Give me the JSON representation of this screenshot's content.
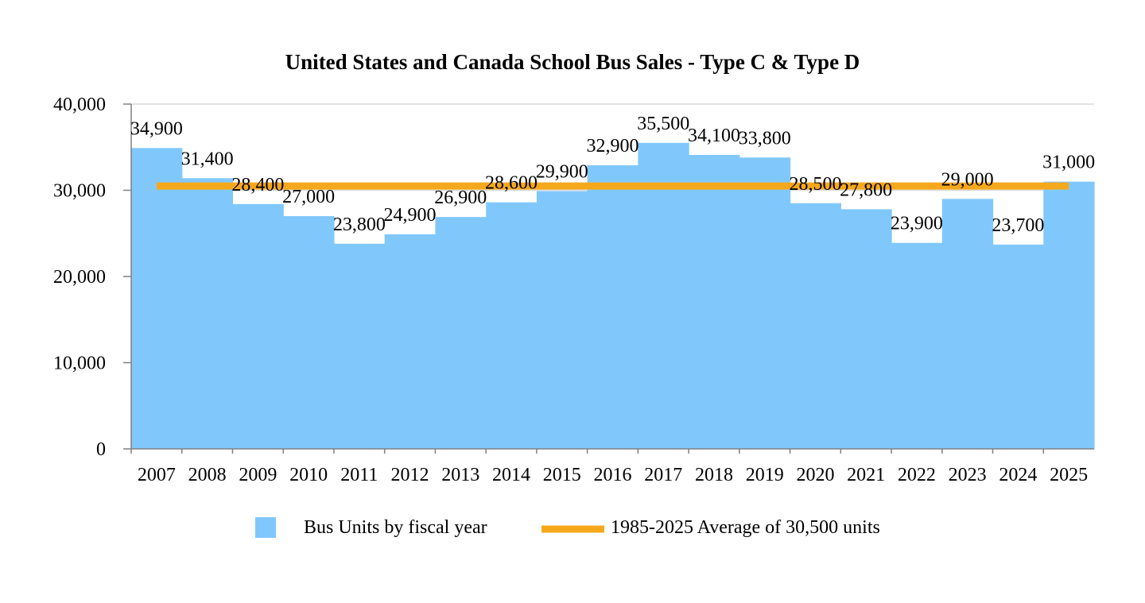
{
  "chart_data": {
    "type": "area",
    "title": "United States and Canada School Bus Sales - Type C & Type D",
    "xlabel": "",
    "ylabel": "",
    "ylim": [
      0,
      40000
    ],
    "yticks": [
      0,
      10000,
      20000,
      30000,
      40000
    ],
    "ytick_labels": [
      "0",
      "10,000",
      "20,000",
      "30,000",
      "40,000"
    ],
    "grid": true,
    "categories": [
      "2007",
      "2008",
      "2009",
      "2010",
      "2011",
      "2012",
      "2013",
      "2014",
      "2015",
      "2016",
      "2017",
      "2018",
      "2019",
      "2020",
      "2021",
      "2022",
      "2023",
      "2024",
      "2025"
    ],
    "series": [
      {
        "name": "Bus Units by fiscal year",
        "kind": "step-area",
        "color": "#80C8FC",
        "values": [
          34900,
          31400,
          28400,
          27000,
          23800,
          24900,
          26900,
          28600,
          29900,
          32900,
          35500,
          34100,
          33800,
          28500,
          27800,
          23900,
          29000,
          23700,
          31000
        ],
        "labels": [
          "34,900",
          "31,400",
          "28,400",
          "27,000",
          "23,800",
          "24,900",
          "26,900",
          "28,600",
          "29,900",
          "32,900",
          "35,500",
          "34,100",
          "33,800",
          "28,500",
          "27,800",
          "23,900",
          "29,000",
          "23,700",
          "31,000"
        ]
      },
      {
        "name": "1985-2025 Average of 30,500 units",
        "kind": "line",
        "color": "#F5A81C",
        "value": 30500
      }
    ],
    "legend_position": "bottom"
  }
}
